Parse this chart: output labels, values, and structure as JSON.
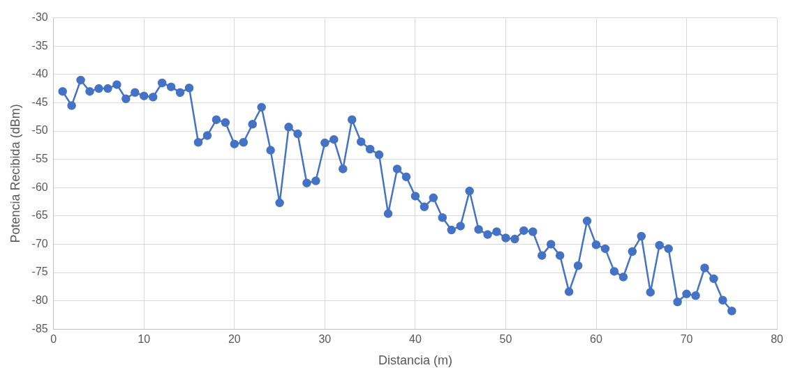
{
  "chart_data": {
    "type": "line",
    "xlabel": "Distancia (m)",
    "ylabel": "Potencia Recibida (dBm)",
    "x": [
      1,
      2,
      3,
      4,
      5,
      6,
      7,
      8,
      9,
      10,
      11,
      12,
      13,
      14,
      15,
      16,
      17,
      18,
      19,
      20,
      21,
      22,
      23,
      24,
      25,
      26,
      27,
      28,
      29,
      30,
      31,
      32,
      33,
      34,
      35,
      36,
      37,
      38,
      39,
      40,
      41,
      42,
      43,
      44,
      45,
      46,
      47,
      48,
      49,
      50,
      51,
      52,
      53,
      54,
      55,
      56,
      57,
      58,
      59,
      60,
      61,
      62,
      63,
      64,
      65,
      66,
      67,
      68,
      69,
      70,
      71,
      72,
      73,
      74,
      75
    ],
    "series": [
      {
        "color": "#4472c4",
        "values": [
          -43,
          -45.5,
          -41,
          -43,
          -42.5,
          -42.5,
          -41.8,
          -44.3,
          -43.2,
          -43.8,
          -44,
          -41.5,
          -42.2,
          -43.2,
          -42.4,
          -52,
          -50.8,
          -48,
          -48.5,
          -52.3,
          -52,
          -48.8,
          -45.8,
          -53.4,
          -62.7,
          -49.3,
          -50.5,
          -59.2,
          -58.8,
          -52.1,
          -51.5,
          -56.7,
          -48,
          -51.9,
          -53.2,
          -54.2,
          -64.6,
          -56.7,
          -58.1,
          -61.5,
          -63.4,
          -61.8,
          -65.3,
          -67.5,
          -66.8,
          -60.6,
          -67.4,
          -68.3,
          -67.8,
          -68.9,
          -69.1,
          -67.6,
          -67.8,
          -72,
          -70,
          -72,
          -78.4,
          -73.8,
          -65.9,
          -70.1,
          -70.8,
          -74.8,
          -75.8,
          -71.3,
          -68.6,
          -78.5,
          -70.2,
          -70.8,
          -80.2,
          -78.8,
          -79.1,
          -74.2,
          -76.1,
          -79.9,
          -81.8
        ]
      }
    ],
    "xlim": [
      0,
      80
    ],
    "xticks": [
      0,
      10,
      20,
      30,
      40,
      50,
      60,
      70,
      80
    ],
    "ylim": [
      -85,
      -30
    ],
    "yticks": [
      -85,
      -80,
      -75,
      -70,
      -65,
      -60,
      -55,
      -50,
      -45,
      -40,
      -35,
      -30
    ],
    "grid": true,
    "marker": "circle",
    "line_style": "solid",
    "legend": false
  }
}
